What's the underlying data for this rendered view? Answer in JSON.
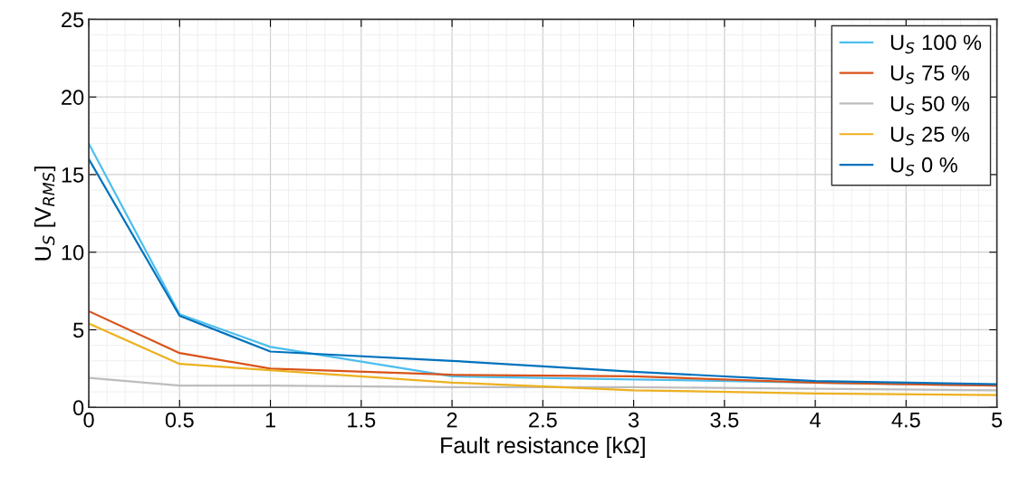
{
  "chart_data": {
    "type": "line",
    "xlabel": "Fault resistance [kΩ]",
    "ylabel": "U$_{S}$ [V$_{RMS}$]",
    "x": [
      0,
      0.5,
      1,
      2,
      3,
      4,
      5
    ],
    "xlim": [
      0,
      5
    ],
    "xticks": [
      0,
      0.5,
      1,
      1.5,
      2,
      2.5,
      3,
      3.5,
      4,
      4.5,
      5
    ],
    "ylim": [
      0,
      25
    ],
    "yticks": [
      0,
      5,
      10,
      15,
      20,
      25
    ],
    "grid": true,
    "legend": "top right",
    "marker": "none",
    "line_style": "solid",
    "series": [
      {
        "name": "U$_{S}$ 100 %",
        "color": "#4dbeee",
        "values": [
          17.0,
          6.0,
          3.9,
          2.0,
          1.8,
          1.6,
          1.4
        ]
      },
      {
        "name": "U$_{S}$ 75 %",
        "color": "#d95319",
        "values": [
          6.2,
          3.5,
          2.5,
          2.1,
          2.0,
          1.6,
          1.4
        ]
      },
      {
        "name": "U$_{S}$ 50 %",
        "color": "#bdbdbd",
        "values": [
          1.9,
          1.4,
          1.4,
          1.3,
          1.3,
          1.2,
          1.1
        ]
      },
      {
        "name": "U$_{S}$ 25 %",
        "color": "#edb120",
        "values": [
          5.4,
          2.8,
          2.4,
          1.6,
          1.1,
          0.9,
          0.8
        ]
      },
      {
        "name": "U$_{S}$ 0 %",
        "color": "#0072bd",
        "values": [
          16.0,
          5.9,
          3.6,
          3.0,
          2.3,
          1.7,
          1.5
        ]
      }
    ]
  }
}
